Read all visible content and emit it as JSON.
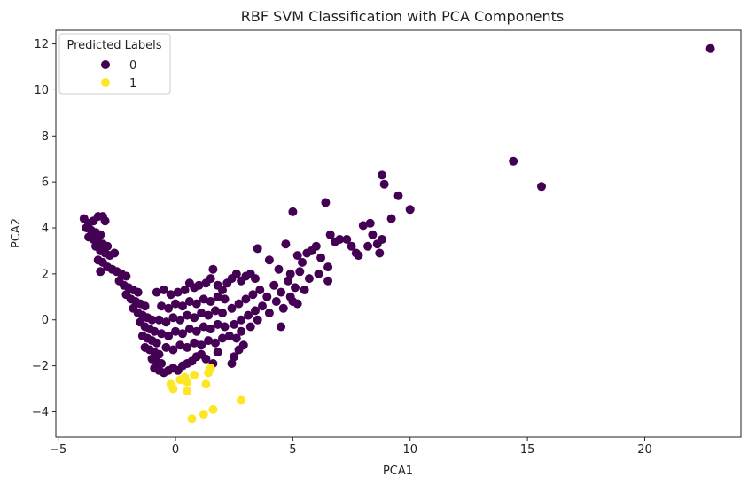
{
  "chart_data": {
    "type": "scatter",
    "title": "RBF SVM Classification with PCA Components",
    "xlabel": "PCA1",
    "ylabel": "PCA2",
    "xlim": [
      -5.1,
      24.1
    ],
    "ylim": [
      -5.1,
      12.6
    ],
    "xticks": [
      -5,
      0,
      5,
      10,
      15,
      20
    ],
    "yticks": [
      -4,
      -2,
      0,
      2,
      4,
      6,
      8,
      10,
      12
    ],
    "grid": false,
    "legend": {
      "title": "Predicted Labels",
      "placement": "top-left",
      "entries": [
        {
          "label": "0",
          "color": "#440154"
        },
        {
          "label": "1",
          "color": "#fde725"
        }
      ]
    },
    "series": [
      {
        "label": "0",
        "color": "#440154",
        "points": [
          [
            -3.9,
            4.4
          ],
          [
            -3.7,
            4.2
          ],
          [
            -3.5,
            4.3
          ],
          [
            -3.3,
            4.5
          ],
          [
            -3.1,
            4.5
          ],
          [
            -3.0,
            4.3
          ],
          [
            -3.8,
            4.0
          ],
          [
            -3.6,
            3.9
          ],
          [
            -3.4,
            3.8
          ],
          [
            -3.2,
            3.7
          ],
          [
            -3.7,
            3.6
          ],
          [
            -3.5,
            3.5
          ],
          [
            -3.3,
            3.4
          ],
          [
            -3.1,
            3.3
          ],
          [
            -2.9,
            3.2
          ],
          [
            -3.4,
            3.2
          ],
          [
            -3.2,
            3.0
          ],
          [
            -3.0,
            2.9
          ],
          [
            -2.8,
            2.8
          ],
          [
            -2.6,
            2.9
          ],
          [
            -3.3,
            2.6
          ],
          [
            -3.1,
            2.5
          ],
          [
            -2.9,
            2.3
          ],
          [
            -2.7,
            2.2
          ],
          [
            -3.2,
            2.1
          ],
          [
            -2.5,
            2.1
          ],
          [
            -2.3,
            2.0
          ],
          [
            -2.1,
            1.9
          ],
          [
            -2.4,
            1.7
          ],
          [
            -2.2,
            1.5
          ],
          [
            -2.0,
            1.4
          ],
          [
            -1.8,
            1.3
          ],
          [
            -1.6,
            1.2
          ],
          [
            -2.1,
            1.1
          ],
          [
            -1.9,
            0.9
          ],
          [
            -1.7,
            0.8
          ],
          [
            -1.5,
            0.7
          ],
          [
            -1.3,
            0.6
          ],
          [
            -1.8,
            0.5
          ],
          [
            -1.6,
            0.3
          ],
          [
            -1.4,
            0.2
          ],
          [
            -1.2,
            0.1
          ],
          [
            -1.0,
            0.0
          ],
          [
            -1.5,
            -0.1
          ],
          [
            -1.3,
            -0.3
          ],
          [
            -1.1,
            -0.4
          ],
          [
            -0.9,
            -0.5
          ],
          [
            -1.4,
            -0.7
          ],
          [
            -1.2,
            -0.8
          ],
          [
            -1.0,
            -0.9
          ],
          [
            -0.8,
            -1.0
          ],
          [
            -1.3,
            -1.2
          ],
          [
            -1.1,
            -1.3
          ],
          [
            -0.9,
            -1.4
          ],
          [
            -0.7,
            -1.5
          ],
          [
            -1.0,
            -1.7
          ],
          [
            -0.8,
            -1.8
          ],
          [
            -0.6,
            -1.9
          ],
          [
            -0.9,
            -2.1
          ],
          [
            -0.7,
            -2.2
          ],
          [
            -0.5,
            -2.3
          ],
          [
            -0.3,
            -2.2
          ],
          [
            -0.1,
            -2.1
          ],
          [
            0.1,
            -2.2
          ],
          [
            0.3,
            -2.0
          ],
          [
            0.5,
            -1.9
          ],
          [
            0.7,
            -1.8
          ],
          [
            0.9,
            -1.6
          ],
          [
            1.1,
            -1.5
          ],
          [
            1.3,
            -1.7
          ],
          [
            -0.8,
            1.2
          ],
          [
            -0.5,
            1.3
          ],
          [
            -0.2,
            1.1
          ],
          [
            0.1,
            1.2
          ],
          [
            0.4,
            1.3
          ],
          [
            0.6,
            1.6
          ],
          [
            0.8,
            1.4
          ],
          [
            1.0,
            1.5
          ],
          [
            1.3,
            1.6
          ],
          [
            1.5,
            1.8
          ],
          [
            1.6,
            2.2
          ],
          [
            1.8,
            1.5
          ],
          [
            2.0,
            1.3
          ],
          [
            2.2,
            1.6
          ],
          [
            2.4,
            1.8
          ],
          [
            2.6,
            2.0
          ],
          [
            2.8,
            1.7
          ],
          [
            3.0,
            1.9
          ],
          [
            3.2,
            2.0
          ],
          [
            3.4,
            1.8
          ],
          [
            -0.6,
            0.6
          ],
          [
            -0.3,
            0.5
          ],
          [
            0.0,
            0.7
          ],
          [
            0.3,
            0.6
          ],
          [
            0.6,
            0.8
          ],
          [
            0.9,
            0.7
          ],
          [
            1.2,
            0.9
          ],
          [
            1.5,
            0.8
          ],
          [
            1.8,
            1.0
          ],
          [
            2.1,
            0.9
          ],
          [
            -0.7,
            0.0
          ],
          [
            -0.4,
            -0.1
          ],
          [
            -0.1,
            0.1
          ],
          [
            0.2,
            0.0
          ],
          [
            0.5,
            0.2
          ],
          [
            0.8,
            0.1
          ],
          [
            1.1,
            0.3
          ],
          [
            1.4,
            0.2
          ],
          [
            1.7,
            0.4
          ],
          [
            2.0,
            0.3
          ],
          [
            -0.6,
            -0.6
          ],
          [
            -0.3,
            -0.7
          ],
          [
            0.0,
            -0.5
          ],
          [
            0.3,
            -0.6
          ],
          [
            0.6,
            -0.4
          ],
          [
            0.9,
            -0.5
          ],
          [
            1.2,
            -0.3
          ],
          [
            1.5,
            -0.4
          ],
          [
            1.8,
            -0.2
          ],
          [
            2.1,
            -0.3
          ],
          [
            -0.4,
            -1.2
          ],
          [
            -0.1,
            -1.3
          ],
          [
            0.2,
            -1.1
          ],
          [
            0.5,
            -1.2
          ],
          [
            0.8,
            -1.0
          ],
          [
            1.1,
            -1.1
          ],
          [
            1.4,
            -0.9
          ],
          [
            1.7,
            -1.0
          ],
          [
            2.0,
            -0.8
          ],
          [
            2.3,
            -0.7
          ],
          [
            2.4,
            0.5
          ],
          [
            2.7,
            0.7
          ],
          [
            3.0,
            0.9
          ],
          [
            3.3,
            1.1
          ],
          [
            3.6,
            1.3
          ],
          [
            3.9,
            1.0
          ],
          [
            4.2,
            1.5
          ],
          [
            4.5,
            1.2
          ],
          [
            4.8,
            1.7
          ],
          [
            5.1,
            1.4
          ],
          [
            2.5,
            -0.2
          ],
          [
            2.8,
            0.0
          ],
          [
            3.1,
            0.2
          ],
          [
            3.4,
            0.4
          ],
          [
            3.7,
            0.6
          ],
          [
            4.0,
            0.3
          ],
          [
            4.3,
            0.8
          ],
          [
            4.6,
            0.5
          ],
          [
            4.9,
            1.0
          ],
          [
            5.2,
            0.7
          ],
          [
            2.6,
            -0.8
          ],
          [
            2.9,
            -1.1
          ],
          [
            2.7,
            -1.3
          ],
          [
            2.5,
            -1.6
          ],
          [
            2.4,
            -1.9
          ],
          [
            1.8,
            -1.4
          ],
          [
            1.6,
            -1.9
          ],
          [
            2.8,
            -0.5
          ],
          [
            3.2,
            -0.3
          ],
          [
            3.5,
            0.0
          ],
          [
            3.5,
            3.1
          ],
          [
            4.0,
            2.6
          ],
          [
            4.4,
            2.2
          ],
          [
            4.7,
            3.3
          ],
          [
            5.0,
            4.7
          ],
          [
            5.2,
            2.8
          ],
          [
            5.4,
            2.5
          ],
          [
            5.6,
            2.9
          ],
          [
            5.8,
            3.0
          ],
          [
            6.0,
            3.2
          ],
          [
            4.9,
            2.0
          ],
          [
            5.3,
            2.1
          ],
          [
            5.7,
            1.8
          ],
          [
            6.1,
            2.0
          ],
          [
            6.5,
            2.3
          ],
          [
            6.5,
            1.7
          ],
          [
            6.2,
            2.7
          ],
          [
            6.8,
            3.4
          ],
          [
            5.0,
            0.8
          ],
          [
            5.5,
            1.3
          ],
          [
            6.4,
            5.1
          ],
          [
            6.6,
            3.7
          ],
          [
            7.0,
            3.5
          ],
          [
            7.3,
            3.5
          ],
          [
            7.5,
            3.2
          ],
          [
            7.7,
            2.9
          ],
          [
            7.8,
            2.8
          ],
          [
            8.0,
            4.1
          ],
          [
            8.2,
            3.2
          ],
          [
            8.3,
            4.2
          ],
          [
            8.4,
            3.7
          ],
          [
            8.6,
            3.3
          ],
          [
            8.7,
            2.9
          ],
          [
            8.8,
            3.5
          ],
          [
            8.8,
            6.3
          ],
          [
            8.9,
            5.9
          ],
          [
            9.2,
            4.4
          ],
          [
            9.5,
            5.4
          ],
          [
            10.0,
            4.8
          ],
          [
            4.5,
            -0.3
          ],
          [
            14.4,
            6.9
          ],
          [
            15.6,
            5.8
          ],
          [
            22.8,
            11.8
          ]
        ]
      },
      {
        "label": "1",
        "color": "#fde725",
        "points": [
          [
            -0.2,
            -2.8
          ],
          [
            -0.1,
            -3.0
          ],
          [
            0.2,
            -2.6
          ],
          [
            0.4,
            -2.5
          ],
          [
            0.5,
            -2.7
          ],
          [
            0.5,
            -3.1
          ],
          [
            1.3,
            -2.8
          ],
          [
            1.4,
            -2.3
          ],
          [
            1.5,
            -2.1
          ],
          [
            0.8,
            -2.4
          ],
          [
            2.8,
            -3.5
          ],
          [
            1.6,
            -3.9
          ],
          [
            1.2,
            -4.1
          ],
          [
            0.7,
            -4.3
          ]
        ]
      }
    ]
  }
}
